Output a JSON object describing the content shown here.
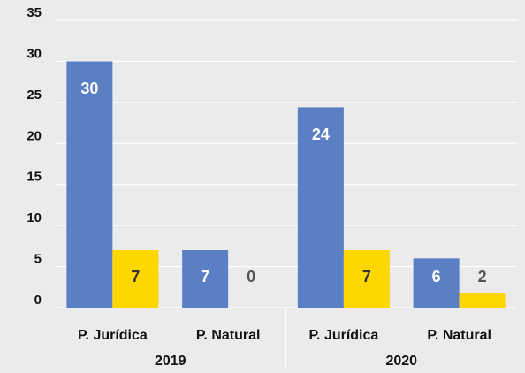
{
  "chart_data": {
    "type": "bar",
    "categories": [
      "P. Jurídica",
      "P. Natural",
      "P. Jurídica",
      "P. Natural"
    ],
    "groups": [
      "2019",
      "2020"
    ],
    "series": [
      {
        "color": "#5b7fc5",
        "values": [
          30,
          7,
          24.4,
          6
        ],
        "value_labels": [
          "30",
          "7",
          "24",
          "6"
        ]
      },
      {
        "color": "#ffd700",
        "values": [
          7,
          0,
          7,
          1.8
        ],
        "value_labels": [
          "7",
          "0",
          "7",
          "2"
        ]
      }
    ],
    "ylim": [
      0,
      35
    ],
    "yticks": [
      0,
      5,
      10,
      15,
      20,
      25,
      30,
      35
    ],
    "grid": true
  }
}
